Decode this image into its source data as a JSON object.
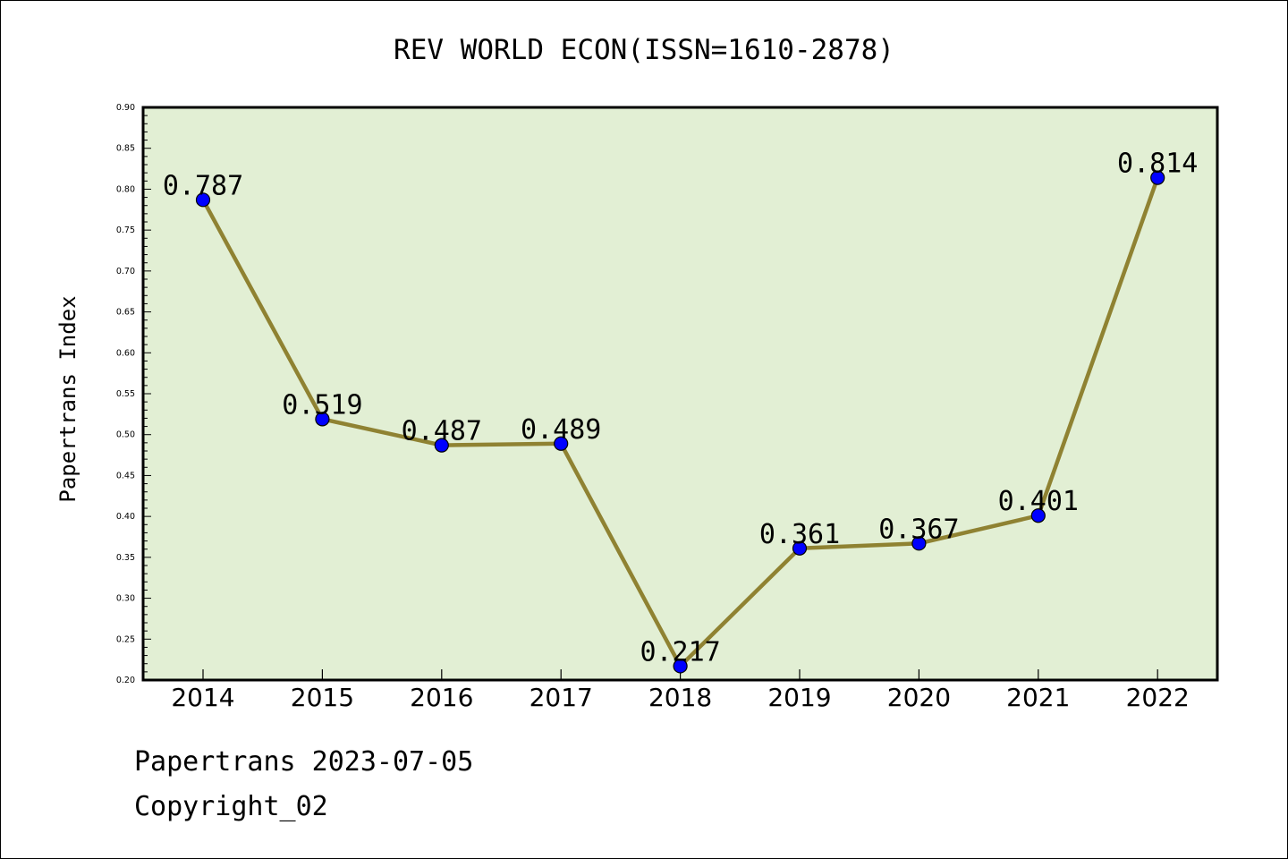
{
  "chart_data": {
    "type": "line",
    "title": "REV WORLD ECON(ISSN=1610-2878)",
    "xlabel": "",
    "ylabel": "Papertrans Index",
    "categories": [
      "2014",
      "2015",
      "2016",
      "2017",
      "2018",
      "2019",
      "2020",
      "2021",
      "2022"
    ],
    "series": [
      {
        "values": [
          0.787,
          0.519,
          0.487,
          0.489,
          0.217,
          0.361,
          0.367,
          0.401,
          0.814
        ],
        "labels": [
          "0.787",
          "0.519",
          "0.487",
          "0.489",
          "0.217",
          "0.361",
          "0.367",
          "0.401",
          "0.814"
        ]
      }
    ],
    "ylim": [
      0.2,
      0.9
    ],
    "yticks": [
      "0.20",
      "0.25",
      "0.30",
      "0.35",
      "0.40",
      "0.45",
      "0.50",
      "0.55",
      "0.60",
      "0.65",
      "0.70",
      "0.75",
      "0.80",
      "0.85",
      "0.90"
    ],
    "grid": false,
    "legend": "none",
    "colors": {
      "plot_background": "#e2efd4",
      "line": "#8f8232",
      "marker": "#0000ff",
      "axis": "#000000"
    }
  },
  "footer": {
    "date_text": "Papertrans 2023-07-05",
    "copyright_text": "Copyright_02"
  }
}
